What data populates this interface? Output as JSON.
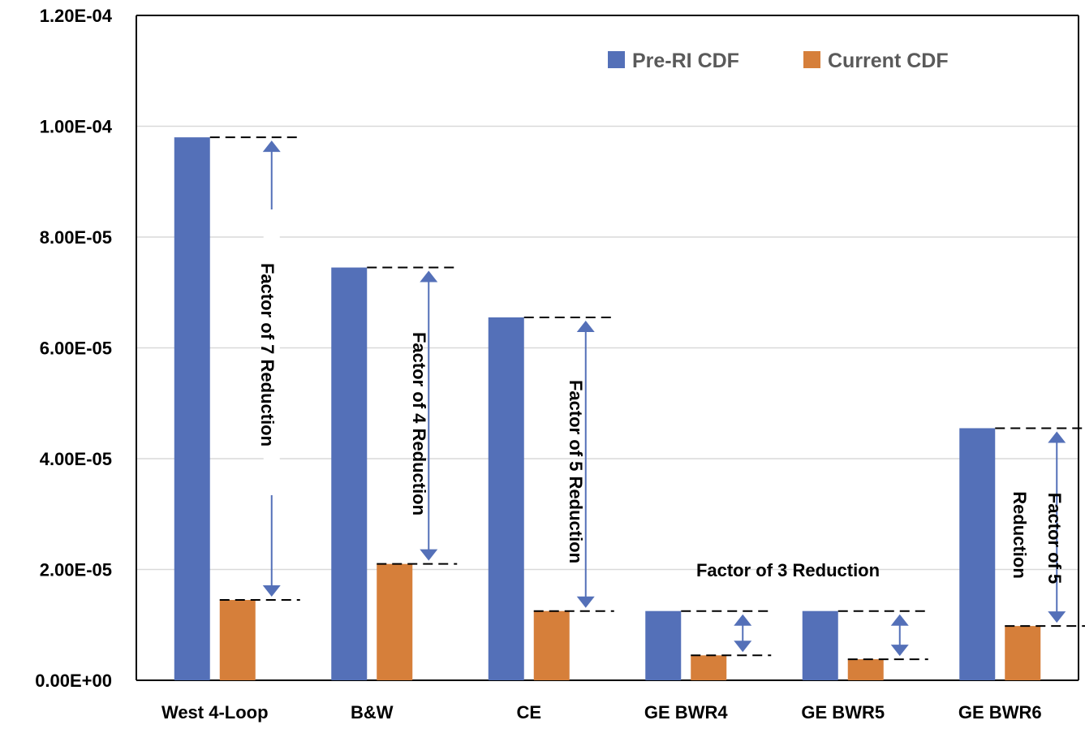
{
  "chart_data": {
    "type": "bar",
    "categories": [
      "West 4-Loop",
      "B&W",
      "CE",
      "GE BWR4",
      "GE BWR5",
      "GE BWR6"
    ],
    "series": [
      {
        "name": "Pre-RI CDF",
        "color": "#5470b8",
        "values": [
          9.8e-05,
          7.45e-05,
          6.55e-05,
          1.25e-05,
          1.25e-05,
          4.55e-05
        ]
      },
      {
        "name": "Current CDF",
        "color": "#d67f3a",
        "values": [
          1.45e-05,
          2.1e-05,
          1.25e-05,
          4.5e-06,
          3.8e-06,
          9.8e-06
        ]
      }
    ],
    "yticks": [
      "0.00E+00",
      "2.00E-05",
      "4.00E-05",
      "6.00E-05",
      "8.00E-05",
      "1.00E-04",
      "1.20E-04"
    ],
    "ylim": [
      0,
      0.00012
    ],
    "grid": true,
    "legend_position": "top-right",
    "annotations": [
      {
        "text": "Factor of 7 Reduction",
        "category": "West 4-Loop"
      },
      {
        "text": "Factor of  4 Reduction",
        "category": "B&W"
      },
      {
        "text": "Factor of  5 Reduction",
        "category": "CE"
      },
      {
        "text": "Factor of 3 Reduction",
        "category": "GE BWR4, GE BWR5"
      },
      {
        "text": "Factor of 5",
        "category": "GE BWR6"
      },
      {
        "text": "Reduction",
        "category": "GE BWR6"
      }
    ],
    "arrow_color": "#5470b8"
  }
}
